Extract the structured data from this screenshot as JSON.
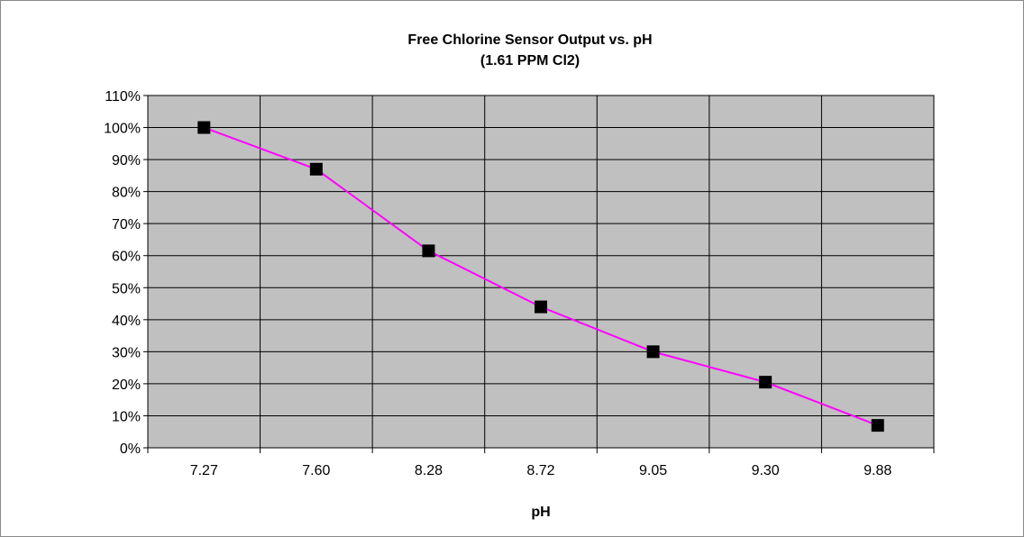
{
  "chart_data": {
    "type": "line",
    "title": "Free Chlorine Sensor Output vs. pH",
    "subtitle": "(1.61 PPM Cl2)",
    "xlabel": "pH",
    "ylabel": "",
    "categories": [
      "7.27",
      "7.60",
      "8.28",
      "8.72",
      "9.05",
      "9.30",
      "9.88"
    ],
    "series": [
      {
        "values": [
          100,
          87,
          61.5,
          44,
          30,
          20.5,
          7
        ]
      }
    ],
    "ylim": [
      0,
      110
    ],
    "y_ticks": [
      "0%",
      "10%",
      "20%",
      "30%",
      "40%",
      "50%",
      "60%",
      "70%",
      "80%",
      "90%",
      "100%",
      "110%"
    ],
    "grid": true,
    "legend": "none",
    "colors": {
      "plot_background": "#c0c0c0",
      "line": "#ff00ff",
      "marker": "#000000",
      "gridline": "#000000"
    }
  }
}
